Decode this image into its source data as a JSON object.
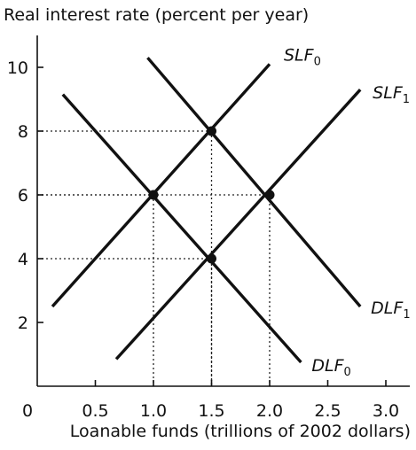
{
  "chart_data": {
    "type": "line",
    "ylabel": "Real interest rate (percent per year)",
    "xlabel": "Loanable funds (trillions of 2002 dollars)",
    "xlim": [
      0,
      3.25
    ],
    "ylim": [
      0,
      11
    ],
    "x_ticks": [
      "0",
      "0.5",
      "1.0",
      "1.5",
      "2.0",
      "2.5",
      "3.0"
    ],
    "x_tick_values": [
      0,
      0.5,
      1.0,
      1.5,
      2.0,
      2.5,
      3.0
    ],
    "y_ticks": [
      "2",
      "4",
      "6",
      "8",
      "10"
    ],
    "y_tick_values": [
      2,
      4,
      6,
      8,
      10
    ],
    "series": [
      {
        "name": "SLF",
        "sub": "0",
        "x": [
          0.13,
          2.0
        ],
        "y": [
          2.5,
          10.1
        ]
      },
      {
        "name": "SLF",
        "sub": "1",
        "x": [
          0.68,
          2.78
        ],
        "y": [
          0.85,
          9.3
        ]
      },
      {
        "name": "DLF",
        "sub": "0",
        "x": [
          0.22,
          2.27
        ],
        "y": [
          9.15,
          0.75
        ]
      },
      {
        "name": "DLF",
        "sub": "1",
        "x": [
          0.95,
          2.78
        ],
        "y": [
          10.3,
          2.5
        ]
      }
    ],
    "intersections": [
      {
        "x": 1.0,
        "y": 6
      },
      {
        "x": 1.5,
        "y": 8
      },
      {
        "x": 1.5,
        "y": 4
      },
      {
        "x": 2.0,
        "y": 6
      }
    ],
    "grid": false,
    "guide_lines": "dotted"
  }
}
